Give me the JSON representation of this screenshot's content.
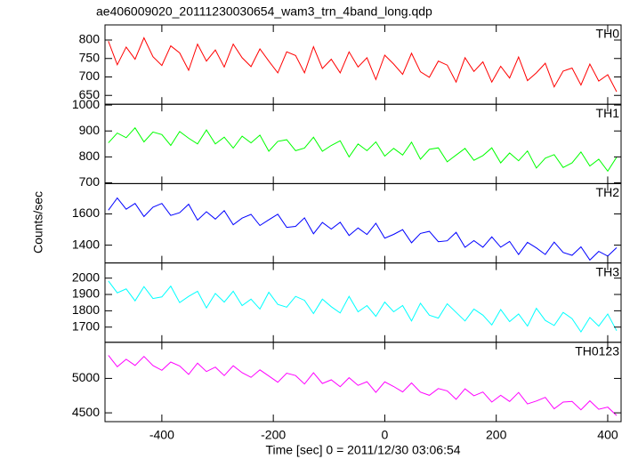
{
  "chart_data": {
    "type": "line",
    "title": "ae406009020_20111230030654_wam3_trn_4band_long.qdp",
    "xlabel": "Time [sec] 0 = 2011/12/30 03:06:54",
    "ylabel": "Counts/sec",
    "xlim": [
      -502,
      424
    ],
    "xticks": [
      -400,
      -200,
      0,
      200,
      400
    ],
    "x": [
      -496,
      -480,
      -464,
      -448,
      -432,
      -416,
      -400,
      -384,
      -368,
      -352,
      -336,
      -320,
      -304,
      -288,
      -272,
      -256,
      -240,
      -224,
      -208,
      -192,
      -176,
      -160,
      -144,
      -128,
      -112,
      -96,
      -80,
      -64,
      -48,
      -32,
      -16,
      0,
      16,
      32,
      48,
      64,
      80,
      96,
      112,
      128,
      144,
      160,
      176,
      192,
      208,
      224,
      240,
      256,
      272,
      288,
      304,
      320,
      336,
      352,
      368,
      384,
      400,
      416
    ],
    "series": [
      {
        "name": "TH0",
        "color": "#ff0000",
        "ylim": [
          626,
          841
        ],
        "yticks": [
          650,
          700,
          750,
          800
        ],
        "values": [
          797,
          733,
          781,
          748,
          806,
          755,
          731,
          784,
          765,
          718,
          789,
          743,
          773,
          727,
          789,
          752,
          728,
          776,
          743,
          711,
          768,
          758,
          711,
          782,
          723,
          748,
          711,
          768,
          727,
          752,
          693,
          759,
          735,
          707,
          764,
          714,
          699,
          743,
          732,
          686,
          752,
          715,
          741,
          686,
          729,
          697,
          754,
          690,
          711,
          737,
          673,
          716,
          724,
          678,
          735,
          689,
          706,
          660
        ]
      },
      {
        "name": "TH1",
        "color": "#00ff00",
        "ylim": [
          697,
          1003
        ],
        "yticks": [
          700,
          800,
          900,
          1000
        ],
        "values": [
          854,
          892,
          874,
          912,
          858,
          896,
          886,
          844,
          898,
          872,
          850,
          904,
          850,
          876,
          834,
          880,
          854,
          884,
          822,
          860,
          866,
          824,
          834,
          876,
          822,
          844,
          862,
          800,
          850,
          824,
          858,
          803,
          833,
          807,
          857,
          791,
          829,
          835,
          781,
          807,
          833,
          787,
          805,
          835,
          777,
          815,
          785,
          823,
          757,
          795,
          809,
          759,
          777,
          819,
          765,
          791,
          745,
          799
        ]
      },
      {
        "name": "TH2",
        "color": "#0000ff",
        "ylim": [
          1286,
          1794
        ],
        "yticks": [
          1400,
          1600
        ],
        "values": [
          1624,
          1702,
          1630,
          1667,
          1583,
          1643,
          1667,
          1590,
          1608,
          1662,
          1560,
          1614,
          1567,
          1621,
          1531,
          1573,
          1597,
          1526,
          1562,
          1598,
          1514,
          1520,
          1575,
          1473,
          1545,
          1503,
          1546,
          1462,
          1510,
          1468,
          1540,
          1445,
          1469,
          1499,
          1415,
          1475,
          1488,
          1422,
          1428,
          1482,
          1386,
          1429,
          1387,
          1453,
          1387,
          1424,
          1340,
          1418,
          1382,
          1340,
          1419,
          1353,
          1335,
          1389,
          1305,
          1360,
          1330,
          1384
        ]
      },
      {
        "name": "TH3",
        "color": "#00ffff",
        "ylim": [
          1607,
          2093
        ],
        "yticks": [
          1700,
          1800,
          1900,
          2000
        ],
        "values": [
          1983,
          1910,
          1934,
          1861,
          1948,
          1875,
          1885,
          1951,
          1850,
          1888,
          1920,
          1818,
          1906,
          1853,
          1920,
          1832,
          1871,
          1811,
          1913,
          1839,
          1822,
          1888,
          1864,
          1783,
          1871,
          1825,
          1787,
          1888,
          1794,
          1832,
          1766,
          1853,
          1794,
          1832,
          1738,
          1846,
          1773,
          1755,
          1843,
          1790,
          1738,
          1811,
          1773,
          1713,
          1808,
          1734,
          1780,
          1706,
          1815,
          1741,
          1710,
          1790,
          1752,
          1671,
          1759,
          1706,
          1780,
          1678
        ]
      },
      {
        "name": "TH0123",
        "color": "#ff00ff",
        "ylim": [
          4372,
          5525
        ],
        "yticks": [
          4500,
          5000
        ],
        "values": [
          5336,
          5170,
          5278,
          5189,
          5319,
          5186,
          5118,
          5238,
          5181,
          5059,
          5222,
          5100,
          5164,
          5042,
          5184,
          5083,
          5016,
          5124,
          5035,
          4945,
          5076,
          5041,
          4919,
          5082,
          4927,
          4980,
          4880,
          5011,
          4899,
          4953,
          4797,
          4950,
          4882,
          4804,
          4934,
          4801,
          4755,
          4853,
          4819,
          4696,
          4849,
          4748,
          4802,
          4657,
          4755,
          4665,
          4796,
          4629,
          4672,
          4725,
          4559,
          4657,
          4666,
          4544,
          4674,
          4552,
          4583,
          4461
        ]
      }
    ]
  }
}
